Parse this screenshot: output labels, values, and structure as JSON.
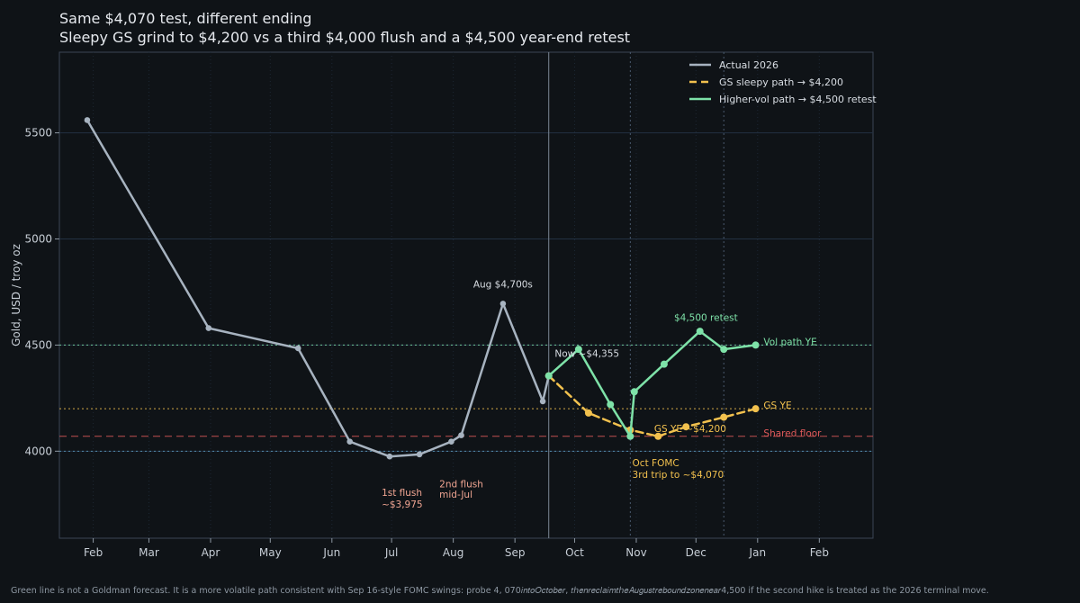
{
  "chart_data": {
    "type": "line",
    "title": "Same $4,070 test, different ending",
    "subtitle": "Sleepy GS grind to $4,200 vs a third $4,000 flush and a $4,500 year-end retest",
    "ylabel": "Gold, USD / troy oz",
    "xlabel": "",
    "ylim": [
      3590,
      5880
    ],
    "xlim": [
      "2026-01-15",
      "2027-02-28"
    ],
    "yticks": [
      4000,
      4500,
      5000,
      5500
    ],
    "xticks": [
      {
        "date": "2026-02-01",
        "label": "Feb"
      },
      {
        "date": "2026-03-01",
        "label": "Mar"
      },
      {
        "date": "2026-04-01",
        "label": "Apr"
      },
      {
        "date": "2026-05-01",
        "label": "May"
      },
      {
        "date": "2026-06-01",
        "label": "Jun"
      },
      {
        "date": "2026-07-01",
        "label": "Jul"
      },
      {
        "date": "2026-08-01",
        "label": "Aug"
      },
      {
        "date": "2026-09-01",
        "label": "Sep"
      },
      {
        "date": "2026-10-01",
        "label": "Oct"
      },
      {
        "date": "2026-11-01",
        "label": "Nov"
      },
      {
        "date": "2026-12-01",
        "label": "Dec"
      },
      {
        "date": "2027-01-01",
        "label": "Jan"
      },
      {
        "date": "2027-02-01",
        "label": "Feb"
      }
    ],
    "grid": true,
    "legend_position": "top-right",
    "series": [
      {
        "name": "Actual 2026",
        "color": "#a7b3c0",
        "style": "solid",
        "points": [
          {
            "x": "2026-01-29",
            "y": 5560
          },
          {
            "x": "2026-03-31",
            "y": 4580
          },
          {
            "x": "2026-05-15",
            "y": 4485
          },
          {
            "x": "2026-06-10",
            "y": 4045
          },
          {
            "x": "2026-06-30",
            "y": 3975
          },
          {
            "x": "2026-07-15",
            "y": 3985
          },
          {
            "x": "2026-07-31",
            "y": 4045
          },
          {
            "x": "2026-08-05",
            "y": 4075
          },
          {
            "x": "2026-08-26",
            "y": 4695
          },
          {
            "x": "2026-09-15",
            "y": 4235
          },
          {
            "x": "2026-09-18",
            "y": 4355
          }
        ]
      },
      {
        "name": "GS sleepy path → $4,200",
        "color": "#f2c14e",
        "style": "dashed",
        "points": [
          {
            "x": "2026-09-18",
            "y": 4355
          },
          {
            "x": "2026-10-08",
            "y": 4180
          },
          {
            "x": "2026-10-29",
            "y": 4100
          },
          {
            "x": "2026-11-12",
            "y": 4070
          },
          {
            "x": "2026-11-26",
            "y": 4115
          },
          {
            "x": "2026-12-15",
            "y": 4160
          },
          {
            "x": "2026-12-31",
            "y": 4200
          }
        ]
      },
      {
        "name": "Higher-vol path → $4,500 retest",
        "color": "#7ee2a8",
        "style": "solid",
        "points": [
          {
            "x": "2026-09-18",
            "y": 4355
          },
          {
            "x": "2026-10-03",
            "y": 4480
          },
          {
            "x": "2026-10-19",
            "y": 4220
          },
          {
            "x": "2026-10-29",
            "y": 4070
          },
          {
            "x": "2026-10-31",
            "y": 4280
          },
          {
            "x": "2026-11-15",
            "y": 4410
          },
          {
            "x": "2026-12-03",
            "y": 4565
          },
          {
            "x": "2026-12-15",
            "y": 4480
          },
          {
            "x": "2026-12-31",
            "y": 4500
          }
        ]
      }
    ],
    "reference_lines": [
      {
        "y": 4500,
        "color": "#7ee2a8",
        "style": "dotted"
      },
      {
        "y": 4200,
        "color": "#f2c14e",
        "style": "dotted"
      },
      {
        "y": 4070,
        "color": "#e05a5a",
        "style": "dashed"
      },
      {
        "y": 4000,
        "color": "#5a9bbd",
        "style": "dotted"
      }
    ],
    "vertical_lines": [
      {
        "x": "2026-09-18",
        "color": "#7c8896",
        "style": "solid"
      },
      {
        "x": "2026-10-29",
        "color": "#4a5a6e",
        "style": "dotted"
      },
      {
        "x": "2026-12-15",
        "color": "#4a5a6e",
        "style": "dotted"
      }
    ],
    "annotations": [
      {
        "text": "Aug $4,700s",
        "x": "2026-08-26",
        "y": 4770,
        "color": "#d8dde3"
      },
      {
        "text": "Now ~$4,355",
        "x": "2026-09-21",
        "y": 4445,
        "color": "#d8dde3"
      },
      {
        "text": "$4,500 retest",
        "x": "2026-11-20",
        "y": 4615,
        "color": "#7ee2a8"
      },
      {
        "text": "1st flush",
        "x": "2026-06-26",
        "y": 3790,
        "color": "#f0a592"
      },
      {
        "text": "~$3,975",
        "x": "2026-06-26",
        "y": 3735,
        "color": "#f0a592"
      },
      {
        "text": "2nd flush",
        "x": "2026-07-25",
        "y": 3830,
        "color": "#f0a592"
      },
      {
        "text": "mid-Jul",
        "x": "2026-07-25",
        "y": 3780,
        "color": "#f0a592"
      },
      {
        "text": "Oct FOMC",
        "x": "2026-10-30",
        "y": 3930,
        "color": "#f2c14e"
      },
      {
        "text": "3rd trip to ~$4,070",
        "x": "2026-10-30",
        "y": 3875,
        "color": "#f2c14e"
      },
      {
        "text": "GS YE ~$4,200",
        "x": "2026-11-10",
        "y": 4090,
        "color": "#f2c14e"
      },
      {
        "text": "Vol path YE",
        "x": "2027-01-04",
        "y": 4500,
        "color": "#7ee2a8"
      },
      {
        "text": "GS YE",
        "x": "2027-01-04",
        "y": 4200,
        "color": "#f2c14e"
      },
      {
        "text": "Shared floor",
        "x": "2027-01-04",
        "y": 4070,
        "color": "#e05a5a"
      }
    ]
  },
  "footer": "Green line is not a Goldman forecast. It is a more volatile path consistent with Sep 16-style FOMC swings: probe 4, 070𝑖𝑛𝑡𝑜𝑂𝑐𝑡𝑜𝑏𝑒𝑟, 𝑡ℎ𝑒𝑛𝑟𝑒𝑐𝑙𝑎𝑖𝑚𝑡ℎ𝑒𝐴𝑢𝑔𝑢𝑠𝑡𝑟𝑒𝑏𝑜𝑢𝑛𝑑𝑧𝑜𝑛𝑒𝑛𝑒𝑎𝑟4,500 if the second hike is treated as the 2026 terminal move."
}
